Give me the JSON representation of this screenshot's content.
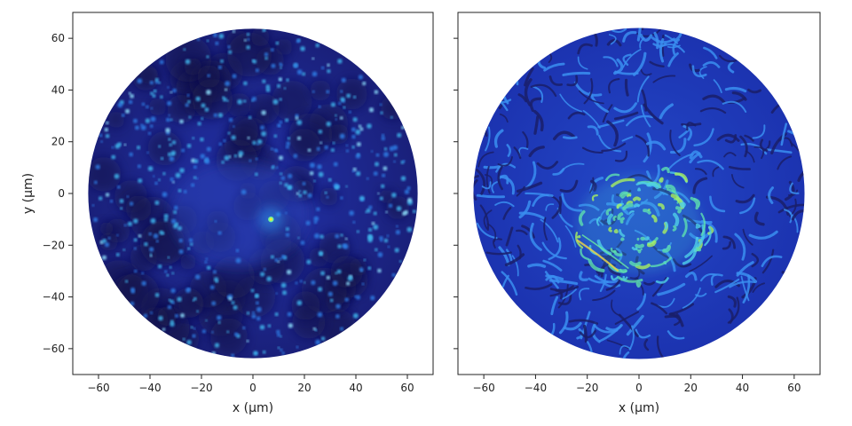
{
  "chart_data": [
    {
      "type": "heatmap",
      "panel": "left",
      "xlabel": "x (μm)",
      "ylabel": "y (μm)",
      "xlim": [
        -70,
        70
      ],
      "ylim": [
        -70,
        70
      ],
      "xticks": [
        -60,
        -40,
        -20,
        0,
        20,
        40,
        60
      ],
      "yticks": [
        60,
        40,
        20,
        0,
        -20,
        -40,
        -60
      ],
      "xtick_labels": [
        "−60",
        "−40",
        "−20",
        "0",
        "20",
        "40",
        "60"
      ],
      "ytick_labels": [
        "60",
        "40",
        "20",
        "0",
        "−20",
        "−40",
        "−60"
      ],
      "domain": {
        "shape": "disk",
        "center": [
          0,
          0
        ],
        "radius": 64
      },
      "hotspot": [
        7,
        -10
      ],
      "colormap": [
        "#1b0c55",
        "#1f2fb0",
        "#2d6fe8",
        "#3fb8f0",
        "#6cf0a0",
        "#f5e83a"
      ],
      "grid": false
    },
    {
      "type": "heatmap",
      "panel": "right",
      "xlabel": "x (μm)",
      "ylabel": "",
      "xlim": [
        -70,
        70
      ],
      "ylim": [
        -70,
        70
      ],
      "xticks": [
        -60,
        -40,
        -20,
        0,
        20,
        40,
        60
      ],
      "yticks": [
        60,
        40,
        20,
        0,
        -20,
        -40,
        -60
      ],
      "xtick_labels": [
        "−60",
        "−40",
        "−20",
        "0",
        "20",
        "40",
        "60"
      ],
      "ytick_labels": [],
      "domain": {
        "shape": "disk",
        "center": [
          0,
          0
        ],
        "radius": 64
      },
      "bright_region": [
        0,
        -12
      ],
      "colormap": [
        "#1b0c55",
        "#1f2fb0",
        "#2d6fe8",
        "#3fb8f0",
        "#6cf0a0",
        "#f5e83a"
      ],
      "grid": false
    }
  ]
}
